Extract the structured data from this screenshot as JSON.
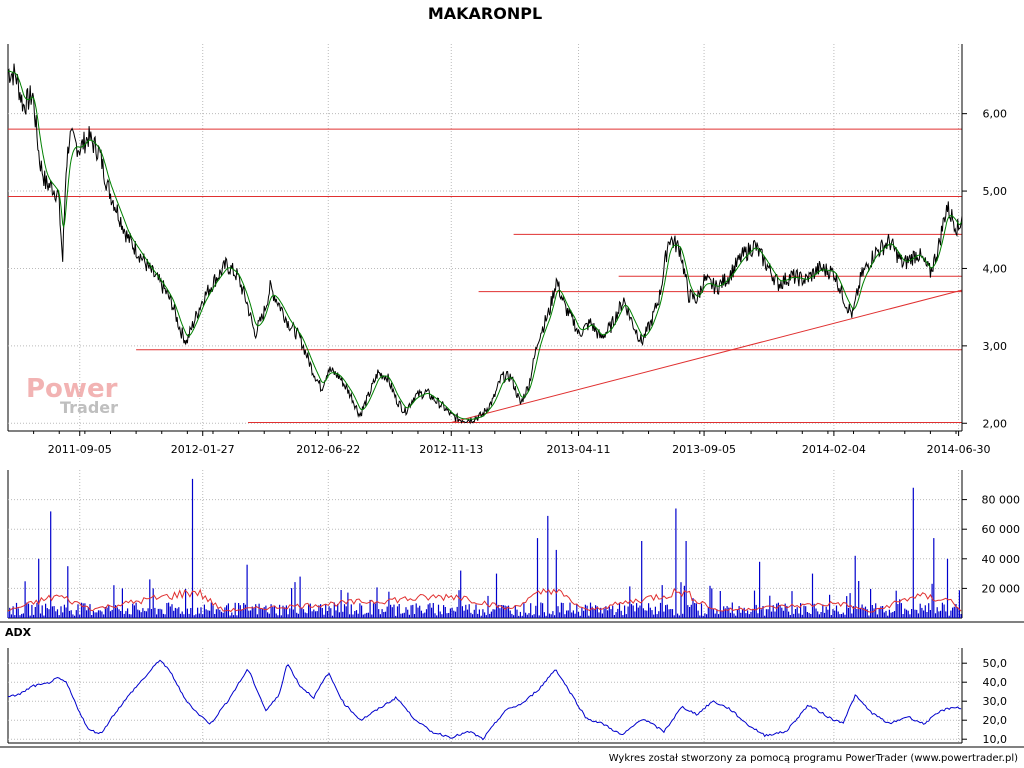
{
  "title": "MAKARONPL",
  "watermark": {
    "line1": "Power",
    "line2": "Trader"
  },
  "credit": "Wykres został stworzony za pomocą programu PowerTrader (www.powertrader.pl)",
  "colors": {
    "price": "#000000",
    "price_ma": "#008000",
    "trend": "#e03030",
    "volume": "#0000cc",
    "volume_ma": "#e03030",
    "adx": "#0000cc",
    "grid": "#bbbbbb"
  },
  "chart_data": [
    {
      "type": "line",
      "name": "price",
      "x_ticks": [
        "2011-09-05",
        "2012-01-27",
        "2012-06-22",
        "2012-11-13",
        "2013-04-11",
        "2013-09-05",
        "2014-02-04",
        "2014-06-30"
      ],
      "y_ticks": [
        "2,00",
        "3,00",
        "4,00",
        "5,00",
        "6,00"
      ],
      "ylim": [
        1.9,
        6.9
      ],
      "xlim": [
        "2011-06-13",
        "2014-07-04"
      ],
      "series_close": [
        [
          "2011-06-13",
          6.55
        ],
        [
          "2011-06-22",
          6.5
        ],
        [
          "2011-07-01",
          6.1
        ],
        [
          "2011-07-12",
          6.25
        ],
        [
          "2011-07-20",
          5.4
        ],
        [
          "2011-07-27",
          5.1
        ],
        [
          "2011-08-04",
          5.05
        ],
        [
          "2011-08-11",
          4.95
        ],
        [
          "2011-08-16",
          4.1
        ],
        [
          "2011-08-20",
          5.3
        ],
        [
          "2011-08-24",
          5.7
        ],
        [
          "2011-09-05",
          5.55
        ],
        [
          "2011-09-15",
          5.7
        ],
        [
          "2011-09-28",
          5.5
        ],
        [
          "2011-10-08",
          5.05
        ],
        [
          "2011-10-19",
          4.75
        ],
        [
          "2011-10-31",
          4.4
        ],
        [
          "2011-11-10",
          4.25
        ],
        [
          "2011-11-25",
          4.0
        ],
        [
          "2011-12-12",
          3.75
        ],
        [
          "2011-12-22",
          3.55
        ],
        [
          "2012-01-01",
          3.2
        ],
        [
          "2012-01-08",
          3.05
        ],
        [
          "2012-01-18",
          3.35
        ],
        [
          "2012-01-27",
          3.6
        ],
        [
          "2012-02-10",
          3.85
        ],
        [
          "2012-02-24",
          4.05
        ],
        [
          "2012-03-08",
          3.9
        ],
        [
          "2012-03-19",
          3.55
        ],
        [
          "2012-03-28",
          3.15
        ],
        [
          "2012-04-07",
          3.4
        ],
        [
          "2012-04-15",
          3.75
        ],
        [
          "2012-04-25",
          3.55
        ],
        [
          "2012-05-06",
          3.3
        ],
        [
          "2012-05-20",
          3.1
        ],
        [
          "2012-06-03",
          2.7
        ],
        [
          "2012-06-14",
          2.45
        ],
        [
          "2012-06-22",
          2.7
        ],
        [
          "2012-07-05",
          2.6
        ],
        [
          "2012-07-19",
          2.35
        ],
        [
          "2012-07-29",
          2.1
        ],
        [
          "2012-08-08",
          2.35
        ],
        [
          "2012-08-19",
          2.65
        ],
        [
          "2012-08-30",
          2.6
        ],
        [
          "2012-09-10",
          2.3
        ],
        [
          "2012-09-20",
          2.15
        ],
        [
          "2012-10-01",
          2.35
        ],
        [
          "2012-10-15",
          2.4
        ],
        [
          "2012-10-25",
          2.3
        ],
        [
          "2012-11-05",
          2.2
        ],
        [
          "2012-11-13",
          2.1
        ],
        [
          "2012-11-23",
          2.05
        ],
        [
          "2012-12-06",
          2.05
        ],
        [
          "2012-12-19",
          2.1
        ],
        [
          "2013-01-01",
          2.3
        ],
        [
          "2013-01-11",
          2.6
        ],
        [
          "2013-01-22",
          2.6
        ],
        [
          "2013-02-02",
          2.25
        ],
        [
          "2013-02-12",
          2.5
        ],
        [
          "2013-02-23",
          3.1
        ],
        [
          "2013-03-08",
          3.45
        ],
        [
          "2013-03-16",
          3.85
        ],
        [
          "2013-03-26",
          3.5
        ],
        [
          "2013-04-06",
          3.3
        ],
        [
          "2013-04-11",
          3.15
        ],
        [
          "2013-04-25",
          3.3
        ],
        [
          "2013-05-07",
          3.1
        ],
        [
          "2013-05-19",
          3.25
        ],
        [
          "2013-06-03",
          3.6
        ],
        [
          "2013-06-13",
          3.3
        ],
        [
          "2013-06-24",
          3.05
        ],
        [
          "2013-07-05",
          3.3
        ],
        [
          "2013-07-15",
          3.65
        ],
        [
          "2013-07-26",
          4.4
        ],
        [
          "2013-08-08",
          4.25
        ],
        [
          "2013-08-18",
          3.65
        ],
        [
          "2013-08-28",
          3.6
        ],
        [
          "2013-09-05",
          3.85
        ],
        [
          "2013-09-20",
          3.75
        ],
        [
          "2013-10-04",
          3.9
        ],
        [
          "2013-10-19",
          4.15
        ],
        [
          "2013-11-03",
          4.3
        ],
        [
          "2013-11-17",
          4.05
        ],
        [
          "2013-12-01",
          3.8
        ],
        [
          "2013-12-16",
          3.9
        ],
        [
          "2014-01-02",
          3.85
        ],
        [
          "2014-01-18",
          4.0
        ],
        [
          "2014-02-04",
          3.95
        ],
        [
          "2014-02-18",
          3.55
        ],
        [
          "2014-02-26",
          3.4
        ],
        [
          "2014-03-08",
          3.9
        ],
        [
          "2014-03-24",
          4.2
        ],
        [
          "2014-04-10",
          4.35
        ],
        [
          "2014-04-26",
          4.05
        ],
        [
          "2014-05-13",
          4.2
        ],
        [
          "2014-05-28",
          3.95
        ],
        [
          "2014-06-06",
          4.25
        ],
        [
          "2014-06-16",
          4.8
        ],
        [
          "2014-06-23",
          4.65
        ],
        [
          "2014-06-30",
          4.5
        ],
        [
          "2014-07-04",
          4.7
        ]
      ],
      "horizontal_lines": [
        {
          "y": 5.8,
          "from": "2011-06-13",
          "to": "2014-07-04"
        },
        {
          "y": 4.93,
          "from": "2011-06-13",
          "to": "2014-07-04"
        },
        {
          "y": 4.44,
          "from": "2013-01-25",
          "to": "2014-07-04"
        },
        {
          "y": 3.9,
          "from": "2013-05-28",
          "to": "2014-07-04"
        },
        {
          "y": 3.7,
          "from": "2012-12-15",
          "to": "2014-07-04"
        },
        {
          "y": 2.95,
          "from": "2011-11-10",
          "to": "2014-07-04"
        },
        {
          "y": 2.01,
          "from": "2012-03-20",
          "to": "2014-07-04"
        }
      ],
      "trend_lines": [
        {
          "from": [
            "2012-11-13",
            2.01
          ],
          "to": [
            "2014-07-04",
            3.72
          ]
        }
      ]
    },
    {
      "type": "bar",
      "name": "volume",
      "y_ticks": [
        "20 000",
        "40 000",
        "60 000",
        "80 000"
      ],
      "ylim": [
        0,
        100000
      ],
      "typical_level": 7000,
      "spikes": [
        [
          "2011-07-20",
          40000
        ],
        [
          "2011-08-02",
          72000
        ],
        [
          "2011-08-23",
          35000
        ],
        [
          "2011-10-26",
          20000
        ],
        [
          "2011-12-01",
          20000
        ],
        [
          "2012-01-15",
          94000
        ],
        [
          "2012-03-20",
          36000
        ],
        [
          "2012-05-20",
          28000
        ],
        [
          "2012-11-25",
          32000
        ],
        [
          "2013-01-05",
          30000
        ],
        [
          "2013-02-23",
          54000
        ],
        [
          "2013-03-06",
          69000
        ],
        [
          "2013-03-16",
          46000
        ],
        [
          "2013-06-25",
          52000
        ],
        [
          "2013-08-03",
          74000
        ],
        [
          "2013-08-15",
          52000
        ],
        [
          "2013-09-15",
          20000
        ],
        [
          "2013-11-10",
          38000
        ],
        [
          "2014-01-11",
          30000
        ],
        [
          "2014-03-02",
          42000
        ],
        [
          "2014-05-08",
          88000
        ],
        [
          "2014-06-02",
          54000
        ],
        [
          "2014-06-18",
          40000
        ]
      ],
      "moving_average": [
        [
          "2011-06-13",
          5000
        ],
        [
          "2011-08-10",
          15000
        ],
        [
          "2011-09-20",
          6000
        ],
        [
          "2012-01-20",
          18000
        ],
        [
          "2012-02-20",
          5000
        ],
        [
          "2012-11-20",
          15000
        ],
        [
          "2013-01-20",
          6000
        ],
        [
          "2013-03-10",
          20000
        ],
        [
          "2013-04-20",
          5000
        ],
        [
          "2013-08-10",
          18000
        ],
        [
          "2013-09-20",
          5000
        ],
        [
          "2014-02-10",
          10000
        ],
        [
          "2014-03-20",
          4000
        ],
        [
          "2014-05-10",
          15000
        ],
        [
          "2014-06-20",
          12000
        ],
        [
          "2014-07-04",
          5000
        ]
      ]
    },
    {
      "type": "line",
      "name": "ADX",
      "title": "ADX",
      "y_ticks": [
        "10,0",
        "20,0",
        "30,0",
        "40,0",
        "50,0"
      ],
      "ylim": [
        8,
        58
      ],
      "values": [
        [
          "2011-06-13",
          32
        ],
        [
          "2011-06-28",
          34
        ],
        [
          "2011-07-12",
          38
        ],
        [
          "2011-07-27",
          39
        ],
        [
          "2011-08-10",
          42
        ],
        [
          "2011-08-20",
          40
        ],
        [
          "2011-09-01",
          28
        ],
        [
          "2011-09-15",
          15
        ],
        [
          "2011-09-30",
          13
        ],
        [
          "2011-10-15",
          23
        ],
        [
          "2011-11-05",
          35
        ],
        [
          "2011-11-25",
          45
        ],
        [
          "2011-12-08",
          52
        ],
        [
          "2011-12-22",
          44
        ],
        [
          "2012-01-05",
          32
        ],
        [
          "2012-01-20",
          24
        ],
        [
          "2012-02-05",
          18
        ],
        [
          "2012-02-25",
          30
        ],
        [
          "2012-03-20",
          47
        ],
        [
          "2012-04-10",
          25
        ],
        [
          "2012-04-25",
          33
        ],
        [
          "2012-05-05",
          50
        ],
        [
          "2012-05-20",
          38
        ],
        [
          "2012-06-05",
          32
        ],
        [
          "2012-06-22",
          45
        ],
        [
          "2012-07-10",
          29
        ],
        [
          "2012-07-30",
          20
        ],
        [
          "2012-08-20",
          26
        ],
        [
          "2012-09-10",
          32
        ],
        [
          "2012-09-28",
          22
        ],
        [
          "2012-10-20",
          14
        ],
        [
          "2012-11-13",
          11
        ],
        [
          "2012-12-05",
          14
        ],
        [
          "2012-12-20",
          10
        ],
        [
          "2013-01-15",
          25
        ],
        [
          "2013-02-05",
          29
        ],
        [
          "2013-02-25",
          37
        ],
        [
          "2013-03-15",
          47
        ],
        [
          "2013-04-05",
          32
        ],
        [
          "2013-04-20",
          21
        ],
        [
          "2013-05-10",
          18
        ],
        [
          "2013-06-01",
          12
        ],
        [
          "2013-06-25",
          21
        ],
        [
          "2013-07-20",
          14
        ],
        [
          "2013-08-10",
          27
        ],
        [
          "2013-08-28",
          23
        ],
        [
          "2013-09-15",
          30
        ],
        [
          "2013-10-05",
          26
        ],
        [
          "2013-10-25",
          18
        ],
        [
          "2013-11-15",
          12
        ],
        [
          "2013-12-10",
          14
        ],
        [
          "2014-01-05",
          28
        ],
        [
          "2014-01-20",
          24
        ],
        [
          "2014-02-04",
          20
        ],
        [
          "2014-02-15",
          19
        ],
        [
          "2014-03-01",
          33
        ],
        [
          "2014-03-20",
          24
        ],
        [
          "2014-04-10",
          18
        ],
        [
          "2014-05-01",
          22
        ],
        [
          "2014-05-20",
          18
        ],
        [
          "2014-06-10",
          25
        ],
        [
          "2014-06-25",
          27
        ],
        [
          "2014-07-04",
          26
        ]
      ]
    }
  ]
}
